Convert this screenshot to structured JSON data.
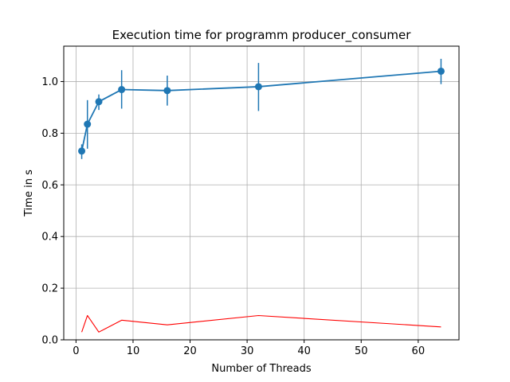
{
  "chart_data": {
    "type": "line",
    "title": "Execution time for programm producer_consumer",
    "xlabel": "Number of Threads",
    "ylabel": "Time in s",
    "xlim": [
      -2.15,
      67.15
    ],
    "ylim": [
      0.0,
      1.137
    ],
    "xticks": [
      0,
      10,
      20,
      30,
      40,
      50,
      60
    ],
    "yticks": [
      0.0,
      0.2,
      0.4,
      0.6,
      0.8,
      1.0
    ],
    "grid": true,
    "series": [
      {
        "color": "#1f77b4",
        "style": "line-markers-errorbars",
        "x": [
          1,
          2,
          4,
          8,
          16,
          32,
          64
        ],
        "y": [
          0.731,
          0.835,
          0.922,
          0.969,
          0.965,
          0.98,
          1.04
        ],
        "err_low": [
          0.7,
          0.74,
          0.89,
          0.895,
          0.907,
          0.886,
          0.99
        ],
        "err_high": [
          0.757,
          0.928,
          0.95,
          1.044,
          1.023,
          1.072,
          1.088
        ]
      },
      {
        "color": "#ff0000",
        "style": "line",
        "x": [
          1,
          2,
          4,
          8,
          16,
          32,
          64
        ],
        "y": [
          0.03,
          0.094,
          0.03,
          0.076,
          0.058,
          0.094,
          0.05
        ]
      }
    ]
  }
}
